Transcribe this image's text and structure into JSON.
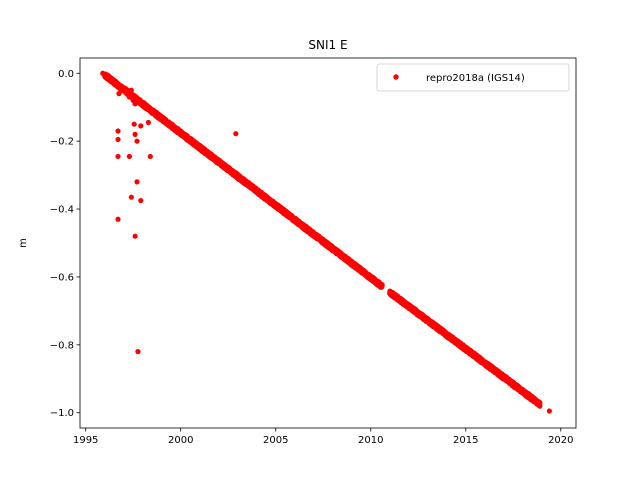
{
  "chart_data": {
    "type": "scatter",
    "title": "SNI1 E",
    "xlabel": "",
    "ylabel": "m",
    "xlim": [
      1994.7,
      2020.8
    ],
    "ylim": [
      -1.045,
      0.045
    ],
    "xticks": [
      1995,
      2000,
      2005,
      2010,
      2015,
      2020
    ],
    "yticks": [
      0.0,
      -0.2,
      -0.4,
      -0.6,
      -0.8,
      -1.0
    ],
    "xtick_labels": [
      "1995",
      "2000",
      "2005",
      "2010",
      "2015",
      "2020"
    ],
    "ytick_labels": [
      "0.0",
      "−0.2",
      "−0.4",
      "−0.6",
      "−0.8",
      "−1.0"
    ],
    "legend": {
      "position": "top-right"
    },
    "series": [
      {
        "name": "repro2018a (IGS14)",
        "color": "#ff0000",
        "marker": "circle",
        "trend_segments": [
          {
            "x_start": 1996.0,
            "x_end": 2010.6,
            "y_start": -0.005,
            "y_end": -0.628,
            "count": 2400
          },
          {
            "x_start": 2011.0,
            "x_end": 2018.9,
            "y_start": -0.645,
            "y_end": -0.975,
            "count": 1400
          }
        ],
        "points": [
          [
            1995.9,
            0.0
          ],
          [
            1996.0,
            -0.005
          ],
          [
            1996.1,
            -0.01
          ],
          [
            1996.2,
            -0.012
          ],
          [
            1996.6,
            -0.03
          ],
          [
            1996.7,
            -0.035
          ],
          [
            1996.75,
            -0.06
          ],
          [
            1996.8,
            -0.045
          ],
          [
            1996.9,
            -0.05
          ],
          [
            1997.1,
            -0.045
          ],
          [
            1997.3,
            -0.07
          ],
          [
            1997.4,
            -0.05
          ],
          [
            1997.5,
            -0.08
          ],
          [
            1997.6,
            -0.09
          ],
          [
            1996.7,
            -0.17
          ],
          [
            1996.7,
            -0.195
          ],
          [
            1996.7,
            -0.245
          ],
          [
            1996.7,
            -0.43
          ],
          [
            1997.3,
            -0.245
          ],
          [
            1997.4,
            -0.365
          ],
          [
            1997.55,
            -0.15
          ],
          [
            1997.6,
            -0.18
          ],
          [
            1997.6,
            -0.48
          ],
          [
            1997.7,
            -0.2
          ],
          [
            1997.7,
            -0.32
          ],
          [
            1997.75,
            -0.82
          ],
          [
            1997.9,
            -0.155
          ],
          [
            1997.9,
            -0.375
          ],
          [
            1998.3,
            -0.145
          ],
          [
            1998.4,
            -0.245
          ],
          [
            2002.9,
            -0.178
          ],
          [
            2019.4,
            -0.995
          ]
        ]
      }
    ]
  }
}
